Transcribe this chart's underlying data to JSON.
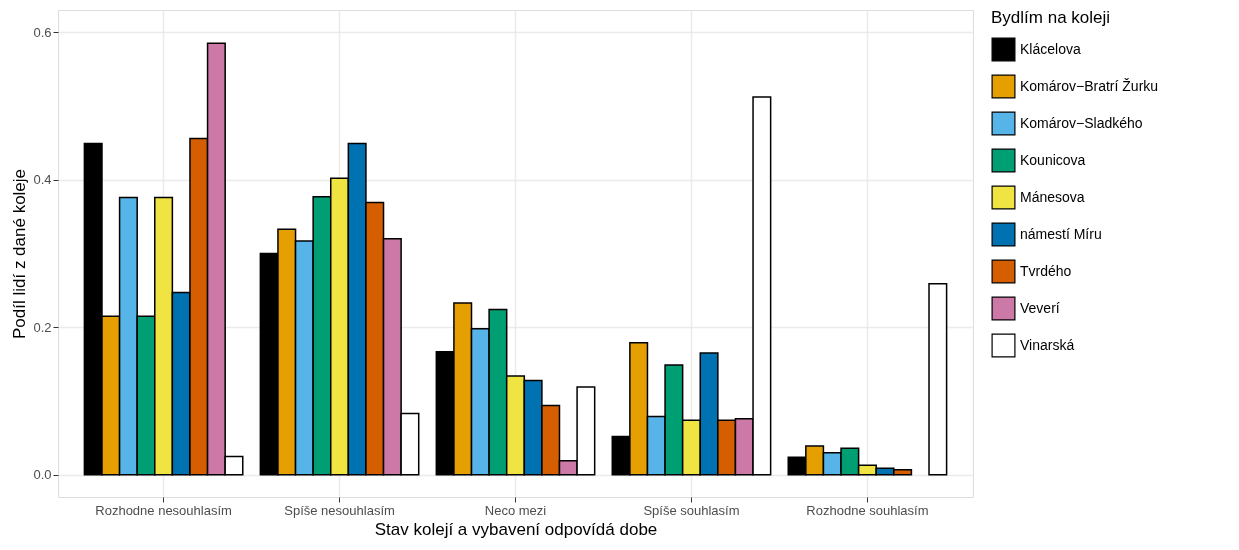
{
  "chart_data": {
    "type": "bar",
    "xlabel": "Stav kolejí a vybavení odpovídá dobe",
    "ylabel": "Podíl lidí z dané koleje",
    "legend_title": "Bydlím na koleji",
    "categories": [
      "Rozhodne nesouhlasím",
      "Spíše nesouhlasím",
      "Neco mezi",
      "Spíše souhlasím",
      "Rozhodne souhlasím"
    ],
    "series": [
      {
        "name": "Klácelova",
        "color": "#000000",
        "values": [
          0.449,
          0.3,
          0.167,
          0.052,
          0.024
        ]
      },
      {
        "name": "Komárov−Bratrí Žurku",
        "color": "#e69f00",
        "values": [
          0.215,
          0.333,
          0.233,
          0.179,
          0.039
        ]
      },
      {
        "name": "Komárov−Sladkého",
        "color": "#56b4e9",
        "values": [
          0.376,
          0.317,
          0.198,
          0.079,
          0.03
        ]
      },
      {
        "name": "Kounicova",
        "color": "#009e73",
        "values": [
          0.215,
          0.377,
          0.224,
          0.149,
          0.036
        ]
      },
      {
        "name": "Mánesova",
        "color": "#f0e442",
        "values": [
          0.376,
          0.402,
          0.134,
          0.074,
          0.013
        ]
      },
      {
        "name": "námestí Míru",
        "color": "#0072b2",
        "values": [
          0.247,
          0.449,
          0.128,
          0.165,
          0.009
        ]
      },
      {
        "name": "Tvrdého",
        "color": "#d55e00",
        "values": [
          0.456,
          0.369,
          0.094,
          0.074,
          0.007
        ]
      },
      {
        "name": "Veverí",
        "color": "#cc79a7",
        "values": [
          0.585,
          0.32,
          0.019,
          0.076,
          null
        ]
      },
      {
        "name": "Vinarská",
        "color": "#ffffff",
        "values": [
          0.025,
          0.083,
          0.119,
          0.512,
          0.259
        ]
      }
    ],
    "ylim": [
      -0.03,
      0.63
    ],
    "yticks": [
      {
        "value": 0,
        "label": "0.0"
      },
      {
        "value": 0.2,
        "label": "0.2"
      },
      {
        "value": 0.4,
        "label": "0.4"
      },
      {
        "value": 0.6,
        "label": "0.6"
      }
    ],
    "grid": true,
    "legend": "right"
  }
}
